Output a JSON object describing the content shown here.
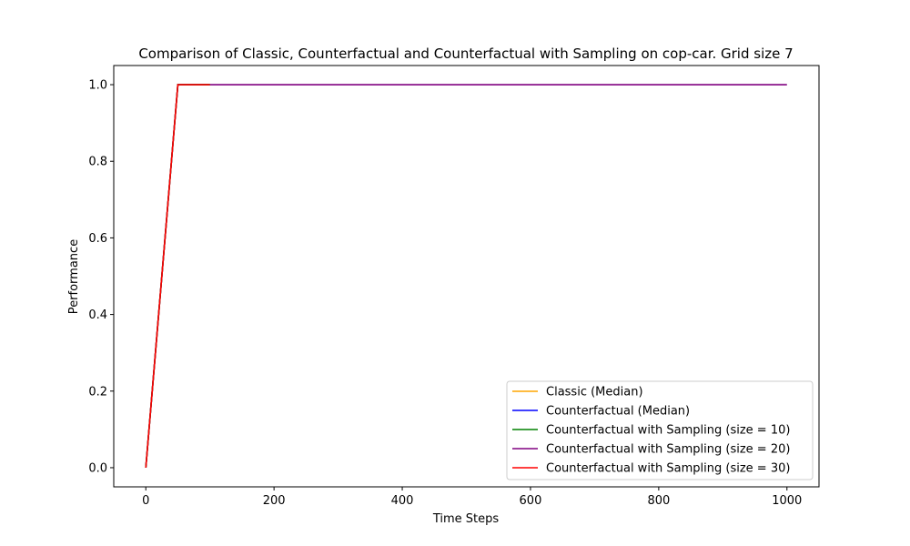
{
  "chart_data": {
    "type": "line",
    "title": "Comparison of Classic, Counterfactual and Counterfactual with Sampling on cop-car. Grid size 7",
    "xlabel": "Time Steps",
    "ylabel": "Performance",
    "xlim": [
      -50,
      1050
    ],
    "ylim": [
      -0.05,
      1.05
    ],
    "xticks": [
      0,
      200,
      400,
      600,
      800,
      1000
    ],
    "yticks": [
      0.0,
      0.2,
      0.4,
      0.6,
      0.8,
      1.0
    ],
    "xtick_labels": [
      "0",
      "200",
      "400",
      "600",
      "800",
      "1000"
    ],
    "ytick_labels": [
      "0.0",
      "0.2",
      "0.4",
      "0.6",
      "0.8",
      "1.0"
    ],
    "grid": false,
    "legend_position": "lower-right",
    "series": [
      {
        "name": "Classic (Median)",
        "color": "#FFA500",
        "x": [
          0,
          50,
          100
        ],
        "y": [
          0.0,
          1.0,
          1.0
        ]
      },
      {
        "name": "Counterfactual (Median)",
        "color": "#0000FF",
        "x": [
          0,
          50,
          100
        ],
        "y": [
          0.0,
          1.0,
          1.0
        ]
      },
      {
        "name": "Counterfactual with Sampling (size = 10)",
        "color": "#008000",
        "x": [
          0,
          50,
          100
        ],
        "y": [
          0.0,
          1.0,
          1.0
        ]
      },
      {
        "name": "Counterfactual with Sampling (size = 20)",
        "color": "#800080",
        "x": [
          0,
          50,
          1000
        ],
        "y": [
          0.0,
          1.0,
          1.0
        ]
      },
      {
        "name": "Counterfactual with Sampling (size = 30)",
        "color": "#FF0000",
        "x": [
          0,
          50,
          100
        ],
        "y": [
          0.0,
          1.0,
          1.0
        ]
      }
    ]
  }
}
